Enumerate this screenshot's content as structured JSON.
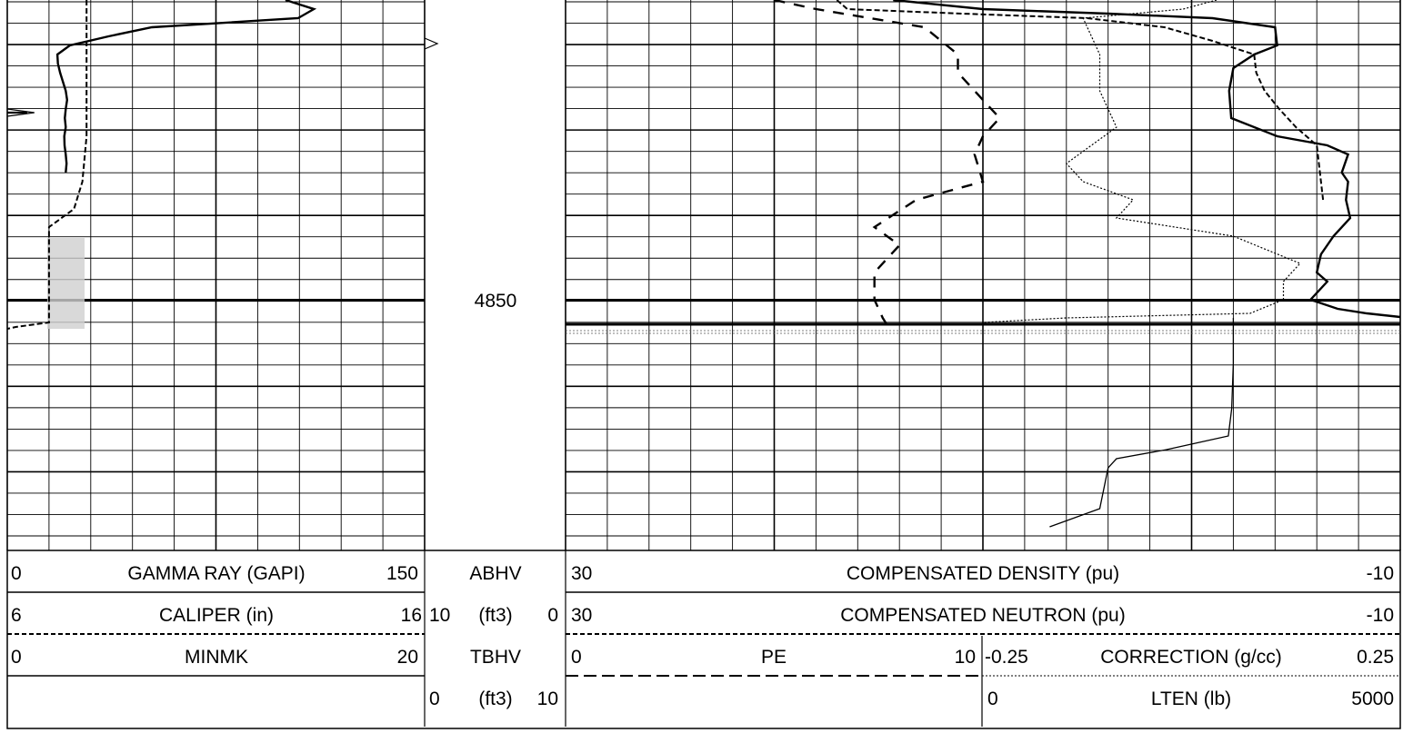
{
  "depth_label": "4850",
  "headers": {
    "gamma_ray": {
      "left": "0",
      "name": "GAMMA RAY (GAPI)",
      "right": "150"
    },
    "caliper": {
      "left": "6",
      "name": "CALIPER (in)",
      "right": "16"
    },
    "minmk": {
      "left": "0",
      "name": "MINMK",
      "right": "20"
    },
    "abhv": {
      "name": "ABHV"
    },
    "abhv_scale": {
      "left": "10",
      "unit": "(ft3)",
      "right": "0"
    },
    "tbhv": {
      "name": "TBHV"
    },
    "tbhv_scale": {
      "left": "0",
      "unit": "(ft3)",
      "right": "10"
    },
    "density": {
      "left": "30",
      "name": "COMPENSATED DENSITY (pu)",
      "right": "-10"
    },
    "neutron": {
      "left": "30",
      "name": "COMPENSATED NEUTRON (pu)",
      "right": "-10"
    },
    "pe": {
      "left": "0",
      "name": "PE",
      "right": "10"
    },
    "correction": {
      "left": "-0.25",
      "name": "CORRECTION (g/cc)",
      "right": "0.25"
    },
    "lten": {
      "left": "0",
      "name": "LTEN (lb)",
      "right": "5000"
    }
  },
  "chart_data": {
    "type": "line",
    "title": "",
    "depth_marker": 4850,
    "tracks": [
      {
        "track": "left",
        "series": [
          {
            "name": "GAMMA RAY (GAPI)",
            "style": "solid",
            "scale": [
              0,
              150
            ],
            "points": [
              [
                100.0,
                0
              ],
              [
                110.2,
                10
              ],
              [
                104.5,
                20
              ],
              [
                52.0,
                30
              ],
              [
                36.4,
                40
              ],
              [
                22.5,
                50
              ],
              [
                18.0,
                60
              ],
              [
                18.2,
                70
              ],
              [
                19.0,
                80
              ],
              [
                20.0,
                90
              ],
              [
                21.0,
                100
              ],
              [
                21.5,
                110
              ],
              [
                21.0,
                120
              ],
              [
                20.7,
                130
              ],
              [
                21.0,
                140
              ],
              [
                20.5,
                150
              ],
              [
                20.6,
                160
              ],
              [
                21.0,
                170
              ],
              [
                21.3,
                180
              ],
              [
                21.0,
                190
              ]
            ]
          },
          {
            "name": "CALIPER (in)",
            "style": "dashed",
            "scale": [
              6,
              16
            ],
            "points": [
              [
                7.9,
                0
              ],
              [
                7.9,
                50
              ],
              [
                7.9,
                100
              ],
              [
                7.9,
                150
              ],
              [
                7.8,
                200
              ],
              [
                7.6,
                230
              ],
              [
                7.0,
                250
              ],
              [
                7.0,
                270
              ],
              [
                7.0,
                300
              ],
              [
                7.0,
                340
              ],
              [
                7.0,
                355
              ],
              [
                6.2,
                360
              ],
              [
                5.9,
                362
              ]
            ]
          },
          {
            "name": "MINMK",
            "style": "solid-thin",
            "scale": [
              0,
              20
            ],
            "points": [
              [
                0,
                120
              ],
              [
                1.3,
                124
              ],
              [
                0,
                128
              ]
            ]
          }
        ]
      },
      {
        "track": "right",
        "series": [
          {
            "name": "COMPENSATED DENSITY (pu)",
            "style": "solid",
            "scale": [
              30,
              -10
            ],
            "points": [
              [
                14.3,
                0
              ],
              [
                10.0,
                10
              ],
              [
                4.0,
                15
              ],
              [
                -1.0,
                20
              ],
              [
                -4.0,
                30
              ],
              [
                -4.1,
                50
              ],
              [
                -3.0,
                60
              ],
              [
                -2.0,
                75
              ],
              [
                -1.8,
                100
              ],
              [
                -1.9,
                130
              ],
              [
                -4.1,
                150
              ],
              [
                -6.5,
                160
              ],
              [
                -7.5,
                170
              ],
              [
                -7.2,
                190
              ],
              [
                -7.5,
                200
              ],
              [
                -7.4,
                220
              ],
              [
                -7.6,
                240
              ],
              [
                -6.8,
                260
              ],
              [
                -6.2,
                280
              ],
              [
                -6.0,
                300
              ],
              [
                -6.5,
                310
              ],
              [
                -5.7,
                330
              ],
              [
                -7.0,
                340
              ],
              [
                -8.4,
                345
              ],
              [
                -10,
                349
              ]
            ]
          },
          {
            "name": "COMPENSATED NEUTRON (pu)",
            "style": "dashed",
            "scale": [
              30,
              -10
            ],
            "points": [
              [
                17.0,
                0
              ],
              [
                16.5,
                10
              ],
              [
                11.0,
                15
              ],
              [
                5.0,
                20
              ],
              [
                1.3,
                30
              ],
              [
                -1.0,
                45
              ],
              [
                -3.0,
                60
              ],
              [
                -3.1,
                80
              ],
              [
                -3.5,
                100
              ],
              [
                -4.2,
                120
              ],
              [
                -5.0,
                140
              ],
              [
                -6.0,
                160
              ],
              [
                -6.1,
                180
              ],
              [
                -6.2,
                200
              ],
              [
                -6.3,
                220
              ]
            ]
          },
          {
            "name": "PE",
            "style": "long-dash",
            "scale": [
              0,
              10
            ],
            "points": [
              [
                2.5,
                0
              ],
              [
                3.0,
                10
              ],
              [
                4.3,
                30
              ],
              [
                4.7,
                60
              ],
              [
                4.7,
                80
              ],
              [
                4.9,
                100
              ],
              [
                5.2,
                130
              ],
              [
                5.0,
                150
              ],
              [
                4.9,
                170
              ],
              [
                5.0,
                200
              ],
              [
                4.2,
                220
              ],
              [
                3.7,
                250
              ],
              [
                4.0,
                270
              ],
              [
                3.7,
                300
              ],
              [
                3.7,
                330
              ],
              [
                3.8,
                350
              ],
              [
                3.9,
                365
              ]
            ]
          },
          {
            "name": "CORRECTION (g/cc)",
            "style": "dotted",
            "scale": [
              -0.25,
              0.25
            ],
            "points": [
              [
                0.14,
                0
              ],
              [
                0.12,
                10
              ],
              [
                0.06,
                20
              ],
              [
                0.07,
                60
              ],
              [
                0.07,
                100
              ],
              [
                0.08,
                140
              ],
              [
                0.05,
                180
              ],
              [
                0.06,
                200
              ],
              [
                0.09,
                220
              ],
              [
                0.08,
                240
              ],
              [
                0.15,
                260
              ],
              [
                0.17,
                275
              ],
              [
                0.19,
                290
              ],
              [
                0.18,
                310
              ],
              [
                0.18,
                330
              ],
              [
                0.16,
                345
              ],
              [
                0.05,
                350
              ],
              [
                0.0,
                355
              ]
            ]
          },
          {
            "name": "LTEN (lb)",
            "style": "solid-thin",
            "scale": [
              0,
              5000
            ],
            "points": [
              [
                4000,
                350
              ],
              [
                4000,
                400
              ],
              [
                3990,
                450
              ],
              [
                3970,
                480
              ],
              [
                3600,
                495
              ],
              [
                3300,
                505
              ],
              [
                3250,
                515
              ],
              [
                3200,
                560
              ],
              [
                2900,
                580
              ]
            ]
          }
        ]
      }
    ]
  }
}
